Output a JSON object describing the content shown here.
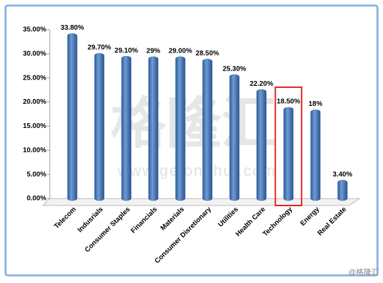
{
  "chart_data": {
    "type": "bar",
    "categories": [
      "Telecom",
      "Indusrials",
      "Consumer Staples",
      "Financials",
      "Materials",
      "Consumer Disretionary",
      "Utilities",
      "Health Care",
      "Technology",
      "Energy",
      "Real Estate"
    ],
    "values": [
      33.8,
      29.7,
      29.1,
      29,
      29,
      28.5,
      25.3,
      22.2,
      18.5,
      18,
      3.4
    ],
    "value_labels": [
      "33.80%",
      "29.70%",
      "29.10%",
      "29%",
      "29.00%",
      "28.50%",
      "25.30%",
      "22.20%",
      "18.50%",
      "18%",
      "3.40%"
    ],
    "color": "#4a7ebb",
    "ylim": [
      0,
      35
    ],
    "yticks": [
      {
        "value": 0,
        "label": "0.00%"
      },
      {
        "value": 5,
        "label": "5.00%"
      },
      {
        "value": 10,
        "label": "10.00%"
      },
      {
        "value": 15,
        "label": "15.00%"
      },
      {
        "value": 20,
        "label": "20.00%"
      },
      {
        "value": 25,
        "label": "25.00%"
      },
      {
        "value": 30,
        "label": "30.00%"
      },
      {
        "value": 35,
        "label": "35.00%"
      }
    ],
    "grid": false,
    "highlight": "Technology",
    "watermark": "格隆汇",
    "watermark_url": "www.gelonghui.com",
    "credit": "@格隆汇"
  }
}
